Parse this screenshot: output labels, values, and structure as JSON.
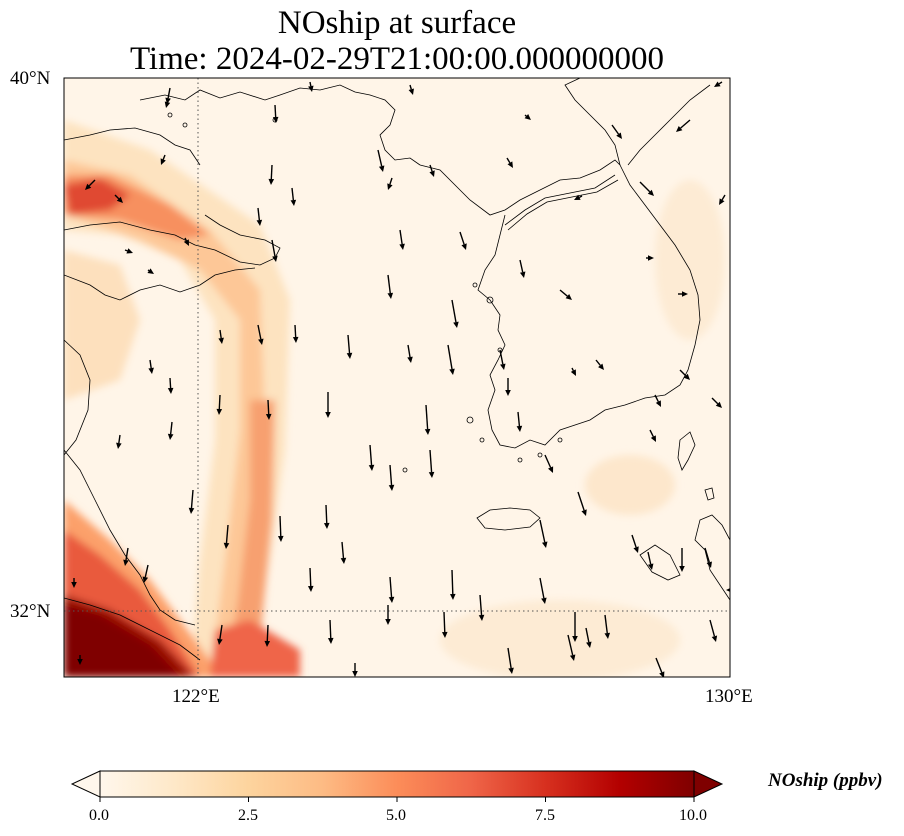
{
  "title": {
    "line1": "NOship at surface",
    "line2": "Time: 2024-02-29T21:00:00.000000000"
  },
  "axes": {
    "lat_labels": [
      {
        "text": "40°N",
        "value": 40
      },
      {
        "text": "32°N",
        "value": 32
      }
    ],
    "lon_labels": [
      {
        "text": "122°E",
        "value": 122
      },
      {
        "text": "130°E",
        "value": 130
      }
    ],
    "extent": {
      "lon_min": 120,
      "lon_max": 130,
      "lat_min": 31,
      "lat_max": 40
    },
    "gridlines": "dotted at 122°E and 32°N"
  },
  "colorbar": {
    "label": "NOship (ppbv)",
    "ticks": [
      "0.0",
      "2.5",
      "5.0",
      "7.5",
      "10.0"
    ],
    "range": [
      0,
      10
    ],
    "extend": "both",
    "colormap": "OrRd",
    "stops": [
      "#fff7ec",
      "#fee8c8",
      "#fdd49e",
      "#fdbb84",
      "#fc8d59",
      "#ef6548",
      "#d7301f",
      "#b30000",
      "#7f0000"
    ]
  },
  "map_layers": {
    "field": "NOship concentration, high along shipping lanes off the Chinese coast (max >10 ppbv near 31°N 120.5°E)",
    "vectors": "wind arrows, predominantly north-to-south",
    "coastlines": "China, Korean Peninsula, Jeju Island"
  }
}
